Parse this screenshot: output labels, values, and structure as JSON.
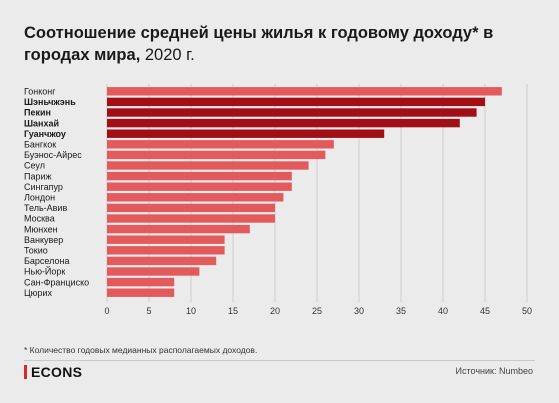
{
  "title": {
    "bold": "Соотношение средней цены жилья к годовому доходу* в городах мира,",
    "regular": " 2020 г."
  },
  "footnote": "* Количество годовых медианных располагаемых доходов.",
  "brand": "ECONS",
  "source": "Источник: Numbeo",
  "colors": {
    "bar": "#e35a5c",
    "highlight": "#a10e16",
    "brand_accent": "#e0262a",
    "grid": "#b8b8b8"
  },
  "chart_data": {
    "type": "bar",
    "orientation": "horizontal",
    "categories": [
      "Гонконг",
      "Шэньчжэнь",
      "Пекин",
      "Шанхай",
      "Гуанчжоу",
      "Бангкок",
      "Буэнос-Айрес",
      "Сеул",
      "Париж",
      "Сингапур",
      "Лондон",
      "Тель-Авив",
      "Москва",
      "Мюнхен",
      "Ванкувер",
      "Токио",
      "Барселона",
      "Нью-Йорк",
      "Сан-Франциско",
      "Цюрих"
    ],
    "highlighted": [
      "Шэньчжэнь",
      "Пекин",
      "Шанхай",
      "Гуанчжоу"
    ],
    "values": [
      47,
      45,
      44,
      42,
      33,
      27,
      26,
      24,
      22,
      22,
      21,
      20,
      20,
      17,
      14,
      14,
      13,
      11,
      8,
      8
    ],
    "xlim": [
      0,
      50
    ],
    "xticks": [
      0,
      5,
      10,
      15,
      20,
      25,
      30,
      35,
      40,
      45,
      50
    ],
    "grid": true
  }
}
